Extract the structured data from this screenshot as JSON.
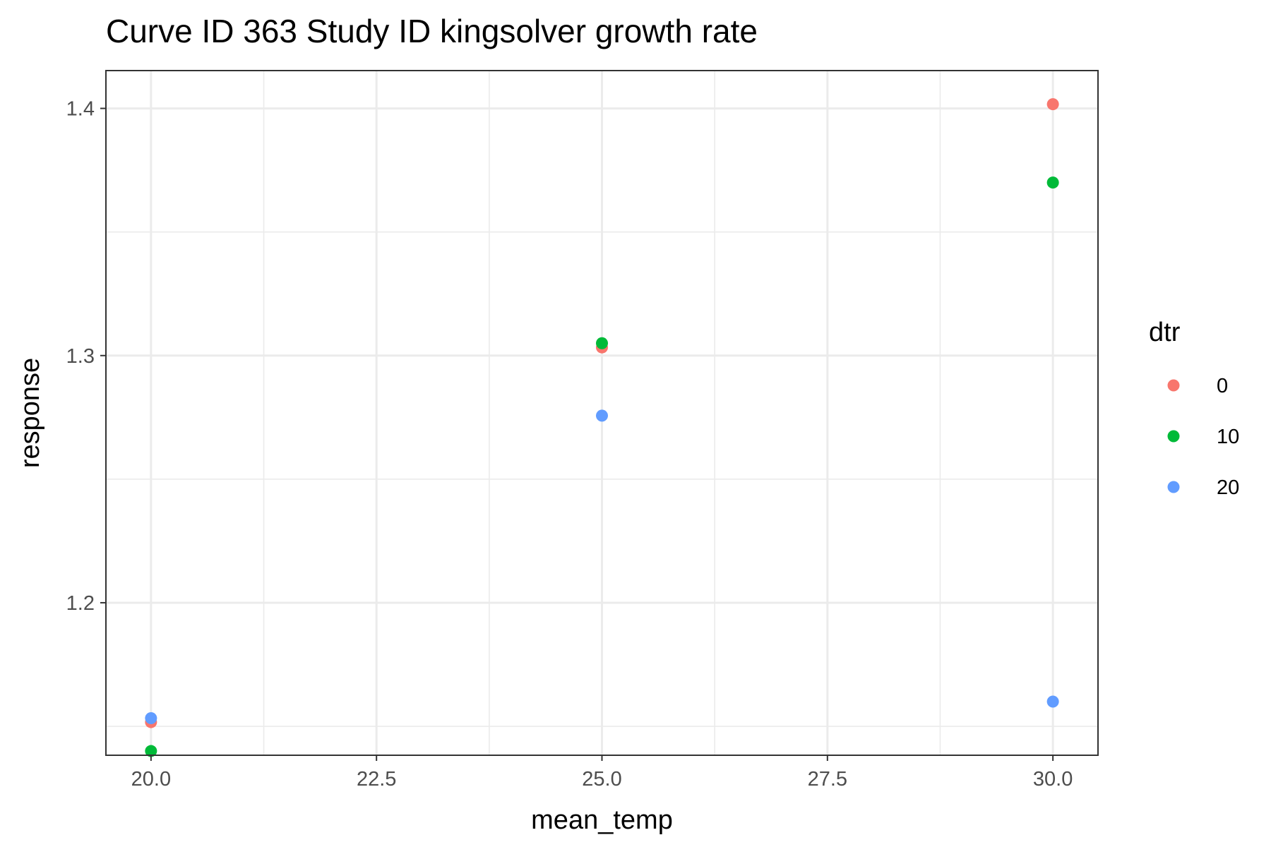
{
  "chart_data": {
    "type": "scatter",
    "title": "Curve ID 363 Study ID kingsolver growth rate",
    "xlabel": "mean_temp",
    "ylabel": "response",
    "xlim": [
      19.5,
      30.5
    ],
    "ylim": [
      1.1383,
      1.4153
    ],
    "x_ticks": [
      20.0,
      22.5,
      25.0,
      27.5,
      30.0
    ],
    "x_tick_labels": [
      "20.0",
      "22.5",
      "25.0",
      "27.5",
      "30.0"
    ],
    "y_ticks": [
      1.2,
      1.3,
      1.4
    ],
    "y_tick_labels": [
      "1.2",
      "1.3",
      "1.4"
    ],
    "grid": true,
    "legend": {
      "title": "dtr",
      "placement": "right"
    },
    "series": [
      {
        "name": "0",
        "color": "#F8766D",
        "x": [
          20,
          25,
          30
        ],
        "y": [
          1.1517,
          1.3033,
          1.4017
        ]
      },
      {
        "name": "10",
        "color": "#00BA38",
        "x": [
          20,
          25,
          30
        ],
        "y": [
          1.14,
          1.305,
          1.37
        ]
      },
      {
        "name": "20",
        "color": "#619CFF",
        "x": [
          20,
          25,
          30
        ],
        "y": [
          1.1533,
          1.2757,
          1.16
        ]
      }
    ]
  }
}
